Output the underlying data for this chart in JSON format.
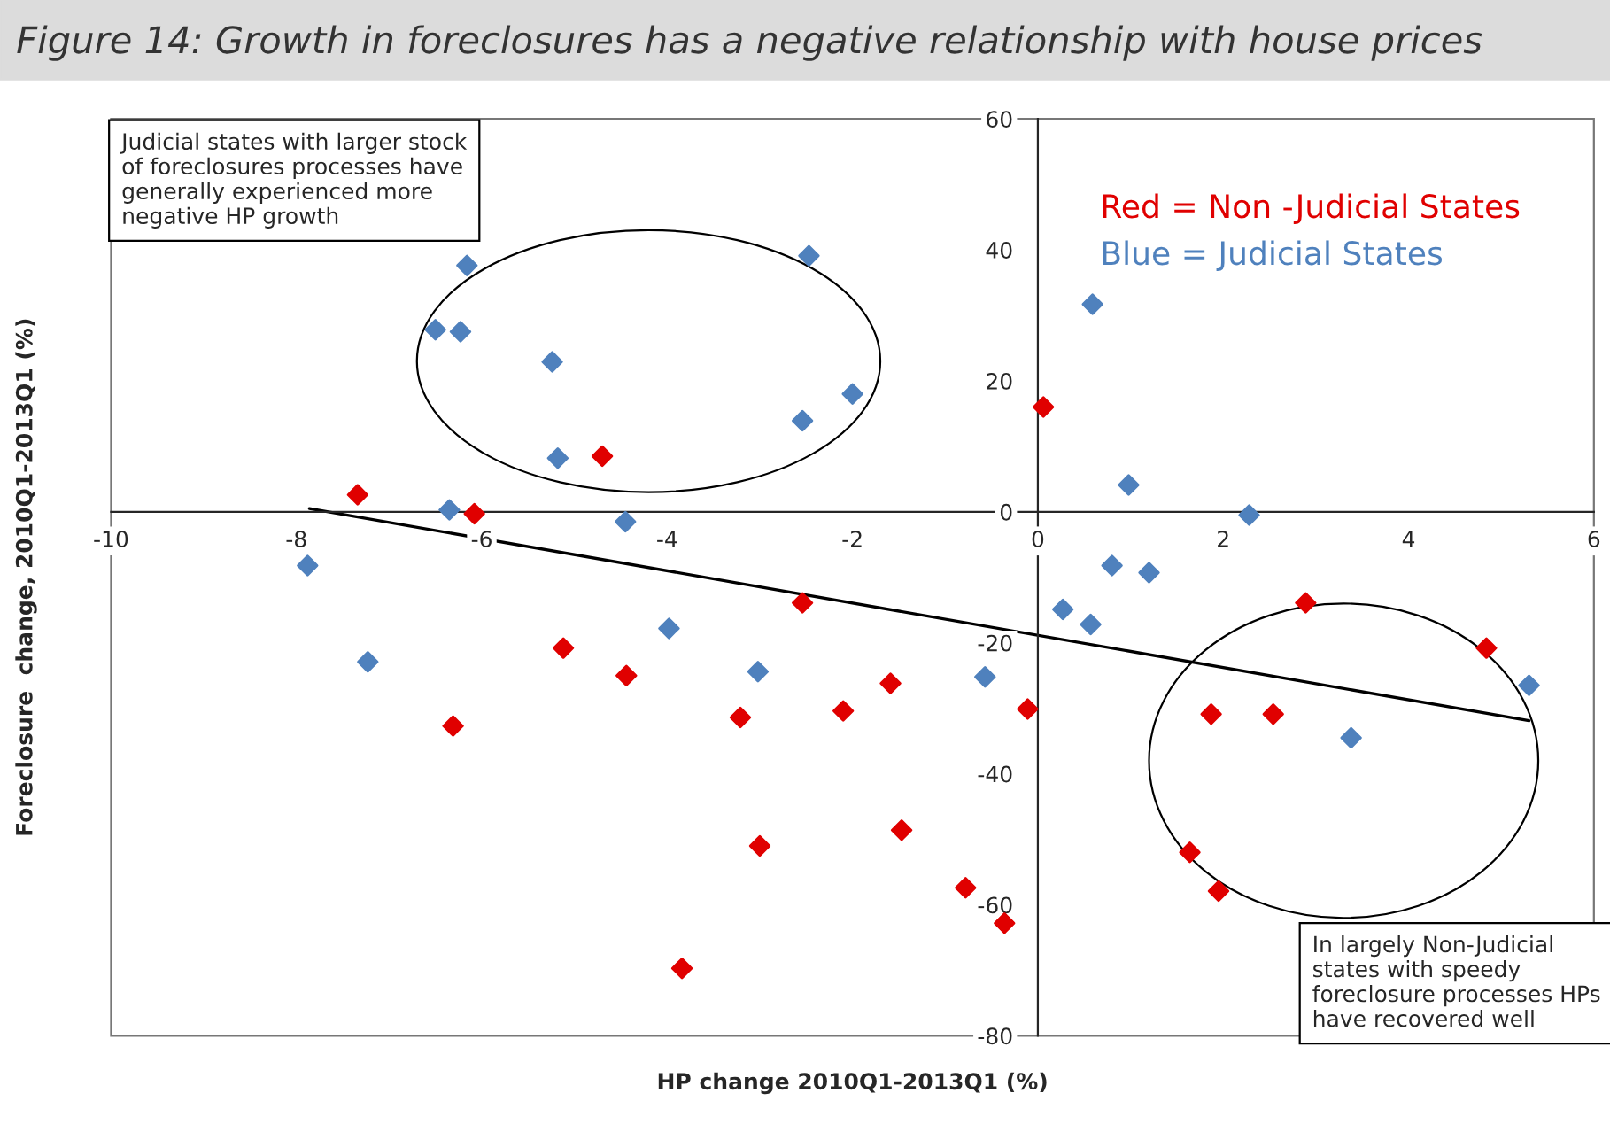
{
  "chart_data": {
    "type": "scatter",
    "title": "Figure 14: Growth in foreclosures has a negative relationship with house prices",
    "xlabel": "HP change 2010Q1-2013Q1 (%)",
    "ylabel": "Foreclosure  change, 2010Q1-2013Q1 (%)",
    "xlim": [
      -10,
      6
    ],
    "ylim": [
      -80,
      60
    ],
    "xticks": [
      -10,
      -8,
      -6,
      -4,
      -2,
      0,
      2,
      4,
      6
    ],
    "yticks": [
      -80,
      -60,
      -40,
      -20,
      0,
      20,
      40,
      60
    ],
    "grid": false,
    "legend": "top right",
    "marker": "diamond",
    "series": [
      {
        "name": "Red = Non -Judicial States",
        "color": "#e00000",
        "x": [
          -7.34,
          -6.08,
          -4.7,
          0.06,
          -2.54,
          -5.12,
          -4.44,
          -6.31,
          -3.21,
          -2.1,
          -1.59,
          -0.11,
          -3.0,
          -1.47,
          -0.78,
          -0.36,
          -3.84,
          2.89,
          4.84,
          1.87,
          2.54,
          1.64,
          1.95
        ],
        "values": [
          2.6,
          -0.3,
          8.5,
          16,
          -13.9,
          -20.8,
          -25,
          -32.7,
          -31.4,
          -30.4,
          -26.2,
          -30.1,
          -51,
          -48.6,
          -57.4,
          -62.8,
          -69.7,
          -13.9,
          -20.8,
          -30.9,
          -30.9,
          -52,
          -57.9
        ]
      },
      {
        "name": "Blue = Judicial States",
        "color": "#4f81bd",
        "x": [
          -6.16,
          -6.5,
          -6.23,
          -5.24,
          -2.47,
          -2.54,
          -2.0,
          -5.18,
          0.59,
          0.98,
          -6.35,
          -4.45,
          2.28,
          -7.88,
          0.8,
          1.2,
          0.27,
          0.57,
          -3.98,
          -7.23,
          -3.02,
          -0.57,
          5.3,
          3.38
        ],
        "values": [
          37.6,
          27.8,
          27.5,
          22.9,
          39.1,
          13.9,
          18,
          8.2,
          31.7,
          4.1,
          0.3,
          -1.5,
          -0.5,
          -8.2,
          -8.2,
          -9.3,
          -14.9,
          -17.2,
          -17.8,
          -22.9,
          -24.4,
          -25.2,
          -26.5,
          -34.5
        ]
      },
      {
        "type": "line",
        "color": "#000000",
        "marker": "none",
        "x": [
          -7.86,
          5.3
        ],
        "values": [
          0.5,
          -31.9
        ]
      }
    ],
    "annotations": [
      "Judicial states with larger stock\nof foreclosures processes have\ngenerally experienced more\nnegative HP growth",
      "In largely Non-Judicial\nstates with speedy\nforeclosure processes HPs\nhave recovered well"
    ]
  }
}
